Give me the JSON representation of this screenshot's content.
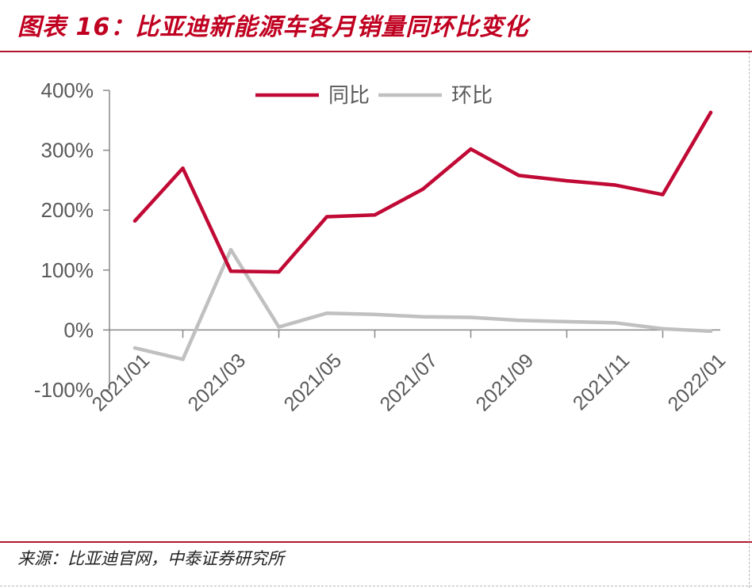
{
  "figure": {
    "title": "图表 16：比亚迪新能源车各月销量同环比变化",
    "source": "来源：比亚迪官网，中泰证券研究所"
  },
  "chart_data": {
    "type": "line",
    "x": [
      "2021/01",
      "2021/02",
      "2021/03",
      "2021/04",
      "2021/05",
      "2021/06",
      "2021/07",
      "2021/08",
      "2021/09",
      "2021/10",
      "2021/11",
      "2021/12",
      "2022/01"
    ],
    "x_tick_labels": [
      "2021/01",
      "2021/03",
      "2021/05",
      "2021/07",
      "2021/09",
      "2021/11",
      "2022/01"
    ],
    "y_tick_labels": [
      "-100%",
      "0%",
      "100%",
      "200%",
      "300%",
      "400%"
    ],
    "ylim": [
      -100,
      400
    ],
    "y_unit": "%",
    "grid": false,
    "legend_position": "top",
    "series": [
      {
        "name": "同比",
        "color": "#c00a35",
        "values": [
          182,
          270,
          98,
          97,
          189,
          192,
          235,
          302,
          258,
          249,
          242,
          226,
          363
        ]
      },
      {
        "name": "环比",
        "color": "#c0c0c0",
        "values": [
          -30,
          -49,
          134,
          5,
          28,
          26,
          22,
          21,
          16,
          14,
          12,
          2,
          -2
        ]
      }
    ]
  }
}
